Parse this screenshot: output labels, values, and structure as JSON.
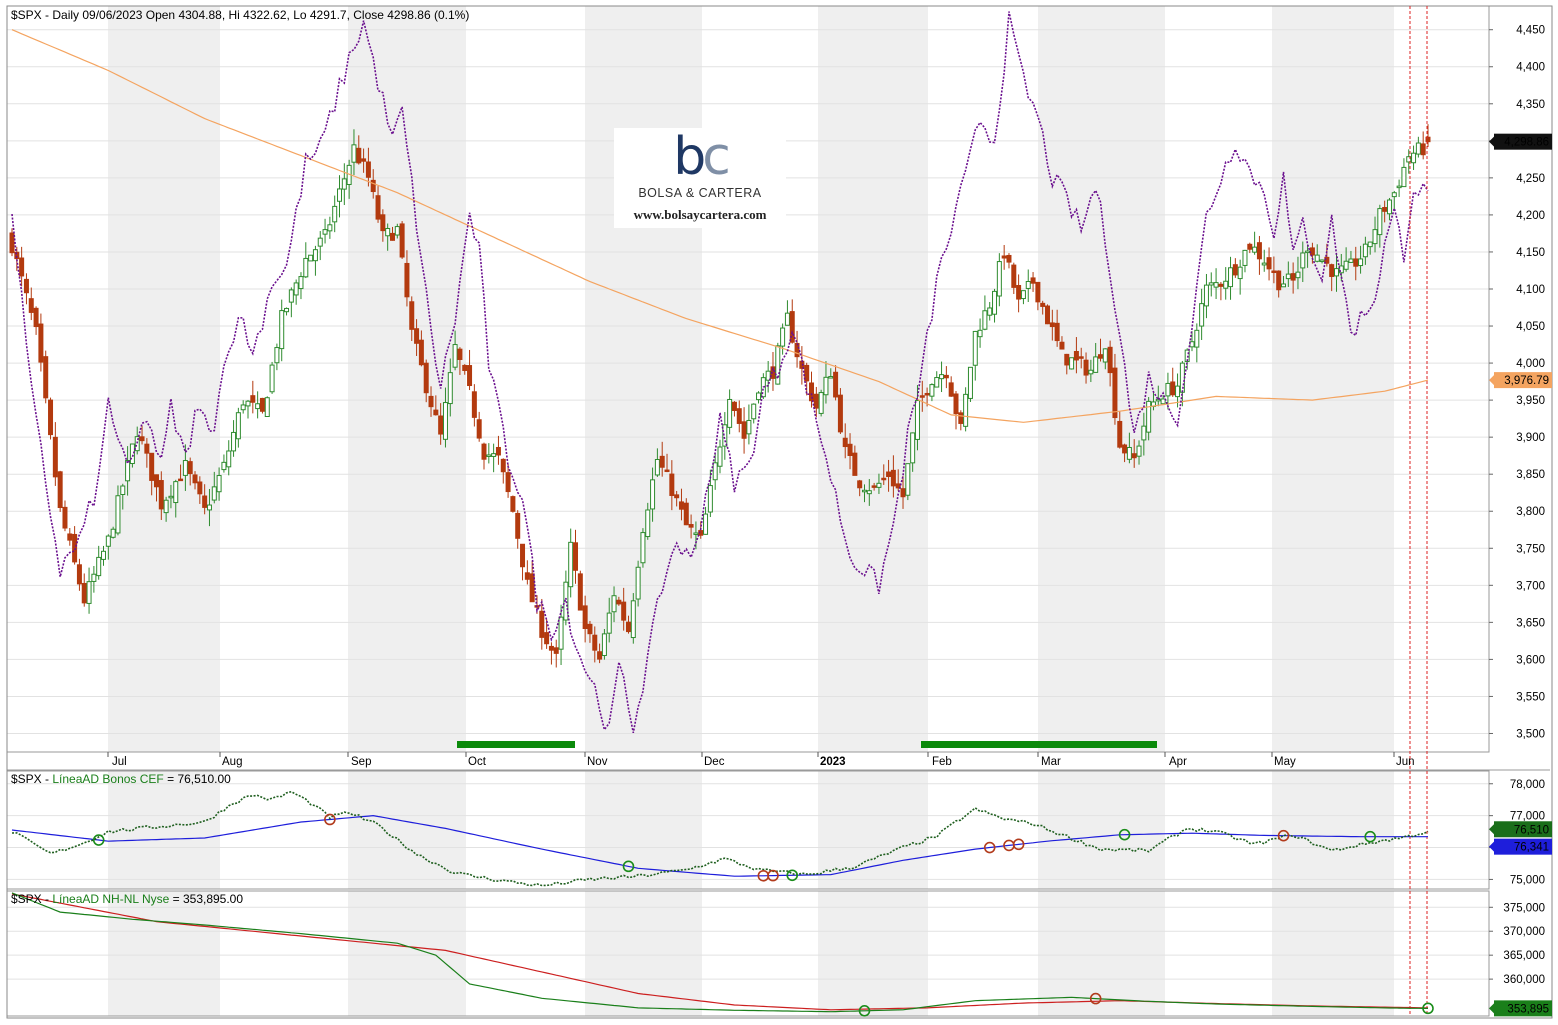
{
  "header": {
    "title": "$SPX - Daily 09/06/2023 Open 4304.88, Hi 4322.62, Lo 4291.7, Close 4298.86 (0.1%)"
  },
  "logo": {
    "mark_b": "b",
    "mark_c": "c",
    "name": "BOLSA & CARTERA",
    "url": "www.bolsaycartera.com"
  },
  "colors": {
    "up": "#2e8b2e",
    "down": "#b33a0f",
    "breadth": "#6a0f8e",
    "ma": "#f4a460",
    "signal_bar": "#0b8a0b",
    "panel2_line": "#1f5f1f",
    "panel2_ma": "#1e1edb",
    "panel3_green": "#1a7f1a",
    "panel3_red": "#cc1f1f",
    "marker_red": "#b23b1c",
    "marker_green": "#1a8c1a"
  },
  "months": [
    "Jul",
    "Aug",
    "Sep",
    "Oct",
    "Nov",
    "Dec",
    "2023",
    "Feb",
    "Mar",
    "Apr",
    "May",
    "Jun"
  ],
  "chart_data": [
    {
      "type": "candlestick",
      "title": "$SPX - Daily 09/06/2023 Open 4304.88, Hi 4322.62, Lo 4291.7, Close 4298.86 (0.1%)",
      "x_axis": "daily, Jun 2022 - Jun 2023",
      "y_ticks": [
        "4,450",
        "4,400",
        "4,350",
        "4,300",
        "4,250",
        "4,200",
        "4,150",
        "4,100",
        "4,050",
        "4,000",
        "3,950",
        "3,900",
        "3,850",
        "3,800",
        "3,750",
        "3,700",
        "3,650",
        "3,600",
        "3,550",
        "3,500"
      ],
      "ylim": [
        3475,
        4482
      ],
      "last": {
        "open": 4304.88,
        "high": 4322.62,
        "low": 4291.7,
        "close": 4298.86,
        "label": "4,298.86"
      },
      "ma_last_label": "3,976.79",
      "candle_anchors": [
        [
          0,
          4160
        ],
        [
          5,
          4040
        ],
        [
          10,
          3800
        ],
        [
          15,
          3680
        ],
        [
          20,
          3760
        ],
        [
          26,
          3910
        ],
        [
          31,
          3810
        ],
        [
          36,
          3860
        ],
        [
          40,
          3800
        ],
        [
          44,
          3860
        ],
        [
          48,
          3950
        ],
        [
          52,
          3930
        ],
        [
          56,
          4060
        ],
        [
          61,
          4140
        ],
        [
          65,
          4170
        ],
        [
          68,
          4230
        ],
        [
          71,
          4290
        ],
        [
          74,
          4250
        ],
        [
          77,
          4170
        ],
        [
          80,
          4180
        ],
        [
          83,
          4040
        ],
        [
          86,
          3970
        ],
        [
          89,
          3900
        ],
        [
          92,
          4020
        ],
        [
          95,
          3960
        ],
        [
          98,
          3880
        ],
        [
          101,
          3870
        ],
        [
          104,
          3800
        ],
        [
          107,
          3700
        ],
        [
          110,
          3640
        ],
        [
          113,
          3600
        ],
        [
          116,
          3750
        ],
        [
          119,
          3640
        ],
        [
          122,
          3600
        ],
        [
          125,
          3690
        ],
        [
          128,
          3640
        ],
        [
          131,
          3780
        ],
        [
          134,
          3870
        ],
        [
          137,
          3830
        ],
        [
          140,
          3780
        ],
        [
          143,
          3760
        ],
        [
          146,
          3860
        ],
        [
          149,
          3960
        ],
        [
          152,
          3900
        ],
        [
          155,
          3970
        ],
        [
          158,
          3990
        ],
        [
          161,
          4060
        ],
        [
          164,
          3990
        ],
        [
          167,
          3940
        ],
        [
          170,
          3990
        ],
        [
          173,
          3880
        ],
        [
          176,
          3840
        ],
        [
          179,
          3830
        ],
        [
          182,
          3850
        ],
        [
          185,
          3820
        ],
        [
          188,
          3940
        ],
        [
          191,
          3980
        ],
        [
          194,
          3990
        ],
        [
          197,
          3910
        ],
        [
          200,
          4040
        ],
        [
          203,
          4080
        ],
        [
          206,
          4150
        ],
        [
          209,
          4080
        ],
        [
          212,
          4110
        ],
        [
          215,
          4060
        ],
        [
          218,
          4010
        ],
        [
          221,
          4000
        ],
        [
          224,
          3990
        ],
        [
          227,
          4030
        ],
        [
          230,
          3890
        ],
        [
          233,
          3870
        ],
        [
          236,
          3940
        ],
        [
          239,
          3960
        ],
        [
          242,
          3970
        ],
        [
          245,
          4030
        ],
        [
          248,
          4100
        ],
        [
          251,
          4110
        ],
        [
          254,
          4130
        ],
        [
          257,
          4160
        ],
        [
          260,
          4140
        ],
        [
          263,
          4110
        ],
        [
          266,
          4110
        ],
        [
          269,
          4160
        ],
        [
          272,
          4140
        ],
        [
          275,
          4120
        ],
        [
          278,
          4130
        ],
        [
          281,
          4150
        ],
        [
          284,
          4200
        ],
        [
          287,
          4230
        ],
        [
          290,
          4280
        ],
        [
          293,
          4290
        ],
        [
          294,
          4299
        ]
      ],
      "breadth_anchors": [
        [
          0,
          4210
        ],
        [
          4,
          3960
        ],
        [
          8,
          3800
        ],
        [
          10,
          3720
        ],
        [
          14,
          3760
        ],
        [
          18,
          3840
        ],
        [
          20,
          3950
        ],
        [
          24,
          3850
        ],
        [
          28,
          3930
        ],
        [
          31,
          3860
        ],
        [
          33,
          3940
        ],
        [
          36,
          3870
        ],
        [
          38,
          3930
        ],
        [
          42,
          3920
        ],
        [
          45,
          4030
        ],
        [
          48,
          4060
        ],
        [
          50,
          4010
        ],
        [
          54,
          4110
        ],
        [
          57,
          4130
        ],
        [
          61,
          4270
        ],
        [
          64,
          4290
        ],
        [
          66,
          4330
        ],
        [
          70,
          4410
        ],
        [
          73,
          4460
        ],
        [
          76,
          4380
        ],
        [
          79,
          4300
        ],
        [
          81,
          4340
        ],
        [
          84,
          4190
        ],
        [
          87,
          4040
        ],
        [
          89,
          3970
        ],
        [
          92,
          4060
        ],
        [
          95,
          4200
        ],
        [
          97,
          4150
        ],
        [
          99,
          4000
        ],
        [
          103,
          3870
        ],
        [
          106,
          3820
        ],
        [
          109,
          3680
        ],
        [
          112,
          3640
        ],
        [
          115,
          3680
        ],
        [
          117,
          3620
        ],
        [
          121,
          3560
        ],
        [
          124,
          3500
        ],
        [
          126,
          3590
        ],
        [
          129,
          3510
        ],
        [
          132,
          3600
        ],
        [
          135,
          3700
        ],
        [
          138,
          3760
        ],
        [
          141,
          3730
        ],
        [
          144,
          3820
        ],
        [
          147,
          3920
        ],
        [
          150,
          3840
        ],
        [
          153,
          3860
        ],
        [
          156,
          3960
        ],
        [
          159,
          3990
        ],
        [
          162,
          4050
        ],
        [
          165,
          3970
        ],
        [
          168,
          3900
        ],
        [
          171,
          3820
        ],
        [
          174,
          3740
        ],
        [
          177,
          3720
        ],
        [
          180,
          3700
        ],
        [
          183,
          3780
        ],
        [
          186,
          3900
        ],
        [
          189,
          3990
        ],
        [
          192,
          4110
        ],
        [
          195,
          4180
        ],
        [
          198,
          4250
        ],
        [
          201,
          4330
        ],
        [
          204,
          4300
        ],
        [
          207,
          4460
        ],
        [
          210,
          4380
        ],
        [
          213,
          4330
        ],
        [
          216,
          4250
        ],
        [
          219,
          4220
        ],
        [
          222,
          4180
        ],
        [
          225,
          4240
        ],
        [
          228,
          4130
        ],
        [
          230,
          4040
        ],
        [
          233,
          3900
        ],
        [
          236,
          3980
        ],
        [
          239,
          3950
        ],
        [
          242,
          3930
        ],
        [
          245,
          4050
        ],
        [
          248,
          4200
        ],
        [
          251,
          4250
        ],
        [
          254,
          4300
        ],
        [
          257,
          4260
        ],
        [
          260,
          4230
        ],
        [
          262,
          4180
        ],
        [
          264,
          4250
        ],
        [
          266,
          4140
        ],
        [
          268,
          4190
        ],
        [
          270,
          4150
        ],
        [
          272,
          4120
        ],
        [
          274,
          4190
        ],
        [
          276,
          4120
        ],
        [
          278,
          4040
        ],
        [
          280,
          4060
        ],
        [
          283,
          4090
        ],
        [
          285,
          4160
        ],
        [
          287,
          4200
        ],
        [
          289,
          4150
        ],
        [
          291,
          4240
        ],
        [
          293,
          4230
        ],
        [
          294,
          4225
        ]
      ],
      "ma_anchors": [
        [
          0,
          4450
        ],
        [
          20,
          4395
        ],
        [
          40,
          4330
        ],
        [
          60,
          4280
        ],
        [
          80,
          4230
        ],
        [
          100,
          4170
        ],
        [
          120,
          4110
        ],
        [
          140,
          4060
        ],
        [
          160,
          4020
        ],
        [
          180,
          3975
        ],
        [
          195,
          3930
        ],
        [
          210,
          3920
        ],
        [
          230,
          3935
        ],
        [
          250,
          3955
        ],
        [
          270,
          3950
        ],
        [
          285,
          3962
        ],
        [
          294,
          3977
        ]
      ],
      "signal_bars": [
        {
          "from": "Oct",
          "to": "Oct-end"
        },
        {
          "from": "Feb",
          "to": "Mar-end"
        }
      ]
    },
    {
      "type": "line",
      "title": "$SPX - LíneaAD Bonos CEF = 76,510.00",
      "title_prefix": "$SPX - ",
      "title_series": "LíneaAD Bonos CEF",
      "title_value": " = 76,510.00",
      "y_ticks": [
        "78,000",
        "77,000",
        "76,000",
        "75,000"
      ],
      "ylim": [
        74700,
        78400
      ],
      "last_label": "76,510",
      "ma_last_label": "76,341",
      "line_anchors": [
        [
          0,
          76500
        ],
        [
          8,
          75800
        ],
        [
          15,
          76150
        ],
        [
          20,
          76500
        ],
        [
          30,
          76650
        ],
        [
          40,
          76800
        ],
        [
          46,
          77400
        ],
        [
          50,
          77650
        ],
        [
          54,
          77500
        ],
        [
          58,
          77750
        ],
        [
          62,
          77400
        ],
        [
          66,
          76950
        ],
        [
          70,
          77100
        ],
        [
          76,
          76700
        ],
        [
          84,
          75800
        ],
        [
          92,
          75200
        ],
        [
          100,
          75000
        ],
        [
          110,
          74800
        ],
        [
          120,
          75000
        ],
        [
          130,
          75100
        ],
        [
          140,
          75300
        ],
        [
          148,
          75650
        ],
        [
          155,
          75300
        ],
        [
          165,
          75150
        ],
        [
          175,
          75400
        ],
        [
          185,
          76000
        ],
        [
          192,
          76350
        ],
        [
          196,
          76800
        ],
        [
          200,
          77200
        ],
        [
          206,
          76900
        ],
        [
          212,
          76750
        ],
        [
          218,
          76400
        ],
        [
          226,
          75950
        ],
        [
          236,
          75900
        ],
        [
          244,
          76600
        ],
        [
          250,
          76500
        ],
        [
          258,
          76100
        ],
        [
          266,
          76400
        ],
        [
          274,
          75900
        ],
        [
          282,
          76150
        ],
        [
          290,
          76350
        ],
        [
          294,
          76510
        ]
      ],
      "ma_anchors": [
        [
          0,
          76550
        ],
        [
          20,
          76200
        ],
        [
          40,
          76300
        ],
        [
          60,
          76800
        ],
        [
          75,
          77000
        ],
        [
          90,
          76600
        ],
        [
          110,
          75950
        ],
        [
          130,
          75350
        ],
        [
          150,
          75100
        ],
        [
          170,
          75150
        ],
        [
          185,
          75600
        ],
        [
          200,
          75950
        ],
        [
          215,
          76200
        ],
        [
          230,
          76400
        ],
        [
          245,
          76450
        ],
        [
          260,
          76380
        ],
        [
          280,
          76340
        ],
        [
          294,
          76341
        ]
      ],
      "markers": [
        {
          "x": 18,
          "color": "green"
        },
        {
          "x": 66,
          "color": "red"
        },
        {
          "x": 128,
          "color": "green"
        },
        {
          "x": 156,
          "color": "red"
        },
        {
          "x": 158,
          "color": "red"
        },
        {
          "x": 162,
          "color": "green"
        },
        {
          "x": 203,
          "color": "red"
        },
        {
          "x": 207,
          "color": "red"
        },
        {
          "x": 209,
          "color": "red"
        },
        {
          "x": 231,
          "color": "green"
        },
        {
          "x": 264,
          "color": "red"
        },
        {
          "x": 282,
          "color": "green"
        }
      ]
    },
    {
      "type": "line",
      "title": "$SPX - LíneaAD NH-NL Nyse = 353,895.00",
      "title_prefix": "$SPX - ",
      "title_series": "LíneaAD NH-NL Nyse",
      "title_value": " = 353,895.00",
      "y_ticks": [
        "375,000",
        "370,000",
        "365,000",
        "360,000"
      ],
      "ylim": [
        352300,
        378400
      ],
      "last_label": "353,895",
      "line_anchors": [
        [
          0,
          378000
        ],
        [
          10,
          374000
        ],
        [
          25,
          372500
        ],
        [
          40,
          371300
        ],
        [
          60,
          369500
        ],
        [
          80,
          367500
        ],
        [
          88,
          365000
        ],
        [
          95,
          359000
        ],
        [
          110,
          356000
        ],
        [
          130,
          354000
        ],
        [
          150,
          353500
        ],
        [
          170,
          353200
        ],
        [
          185,
          353600
        ],
        [
          200,
          355500
        ],
        [
          220,
          356200
        ],
        [
          235,
          355400
        ],
        [
          250,
          354800
        ],
        [
          270,
          354300
        ],
        [
          290,
          353900
        ],
        [
          294,
          353895
        ]
      ],
      "ma_anchors": [
        [
          0,
          377800
        ],
        [
          30,
          372000
        ],
        [
          60,
          369000
        ],
        [
          90,
          366000
        ],
        [
          110,
          361500
        ],
        [
          130,
          357000
        ],
        [
          150,
          354600
        ],
        [
          170,
          353600
        ],
        [
          190,
          354000
        ],
        [
          210,
          355000
        ],
        [
          230,
          355500
        ],
        [
          250,
          354900
        ],
        [
          270,
          354400
        ],
        [
          294,
          354000
        ]
      ],
      "markers": [
        {
          "x": 177,
          "color": "green"
        },
        {
          "x": 225,
          "color": "red"
        },
        {
          "x": 294,
          "color": "green"
        }
      ]
    }
  ]
}
